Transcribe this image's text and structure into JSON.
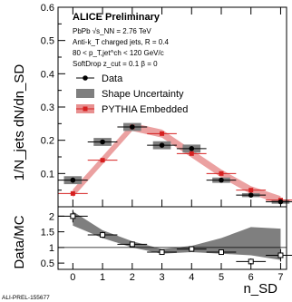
{
  "chart_data": [
    {
      "type": "scatter",
      "panel": "main",
      "ylabel": "1/N_jets dN/dn_SD",
      "xlim": [
        -0.5,
        7.2
      ],
      "ylim": [
        0,
        0.6
      ],
      "y_ticks": [
        "0.1",
        "0.2",
        "0.3",
        "0.4",
        "0.5",
        "0.6"
      ],
      "annotations": {
        "experiment": "ALICE Preliminary",
        "system": "PbPb √s_NN = 2.76 TeV",
        "jets": "Anti-k_T charged jets, R = 0.4",
        "pt_range": "80 < p_T,jet^ch < 120 GeV/c",
        "grooming": "SoftDrop z_cut = 0.1 β = 0"
      },
      "legend": {
        "placement": "top-left",
        "entries": [
          "Data",
          "Shape Uncertainty",
          "PYTHIA Embedded"
        ]
      },
      "series": [
        {
          "name": "Data",
          "x": [
            0,
            1,
            2,
            3,
            4,
            5,
            6,
            7
          ],
          "y": [
            0.08,
            0.195,
            0.24,
            0.185,
            0.175,
            0.08,
            0.035,
            0.015
          ],
          "yerr": [
            0.008,
            0.006,
            0.006,
            0.006,
            0.006,
            0.004,
            0.003,
            0.003
          ],
          "shape_uncertainty": [
            0.012,
            0.012,
            0.012,
            0.012,
            0.012,
            0.008,
            0.006,
            0.006
          ],
          "color": "#000000",
          "band_color": "#7f7f7f"
        },
        {
          "name": "PYTHIA Embedded",
          "x": [
            0,
            1,
            2,
            3,
            4,
            5,
            6,
            7
          ],
          "y": [
            0.04,
            0.14,
            0.24,
            0.22,
            0.16,
            0.1,
            0.05,
            0.02
          ],
          "band_halfwidth": 0.012,
          "color": "#d62020",
          "band_color": "#e89090"
        }
      ]
    },
    {
      "type": "scatter",
      "panel": "ratio",
      "xlabel": "n_SD",
      "ylabel": "Data/MC",
      "xlim": [
        -0.5,
        7.2
      ],
      "ylim": [
        0.3,
        2.3
      ],
      "x_ticks": [
        "0",
        "1",
        "2",
        "3",
        "4",
        "5",
        "6",
        "7"
      ],
      "y_ticks": [
        "0.5",
        "1",
        "1.5",
        "2"
      ],
      "reference_line": 1,
      "series": [
        {
          "name": "Data/MC",
          "x": [
            0,
            1,
            2,
            3,
            4,
            5,
            6,
            7
          ],
          "y": [
            2.0,
            1.4,
            1.1,
            0.85,
            0.95,
            0.85,
            0.55,
            0.75
          ],
          "yerr": [
            0.2,
            0.1,
            0.05,
            0.05,
            0.05,
            0.05,
            0.1,
            0.2
          ],
          "band_lo": [
            1.7,
            1.3,
            1.0,
            0.8,
            0.85,
            0.8,
            0.75,
            0.6
          ],
          "band_hi": [
            2.15,
            1.55,
            1.2,
            0.95,
            1.05,
            1.3,
            1.65,
            1.6
          ],
          "color": "#000000",
          "band_color": "#7f7f7f"
        }
      ]
    }
  ],
  "footer": {
    "label": "ALI-PREL-155677"
  }
}
